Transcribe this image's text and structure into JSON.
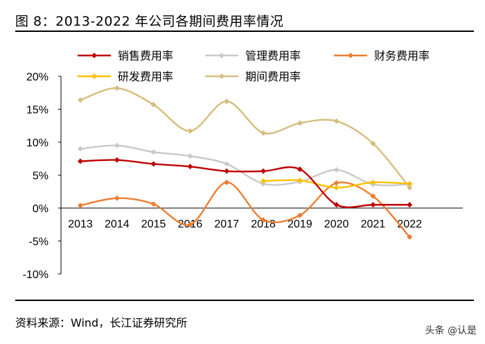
{
  "figure": {
    "title": "图 8：2013-2022 年公司各期间费用率情况",
    "source": "资料来源：Wind，长江证券研究所",
    "watermark": "头条 @认是"
  },
  "chart_data": {
    "type": "line",
    "x": [
      "2013",
      "2014",
      "2015",
      "2016",
      "2017",
      "2018",
      "2019",
      "2020",
      "2021",
      "2022"
    ],
    "ylim": [
      -10,
      20
    ],
    "yticks": [
      20,
      15,
      10,
      5,
      0,
      -5,
      -10
    ],
    "ytick_labels": [
      "20%",
      "15%",
      "10%",
      "5%",
      "0%",
      "-5%",
      "-10%"
    ],
    "grid": false,
    "legend_position": "top",
    "smooth": true,
    "series": [
      {
        "name": "销售费用率",
        "color": "#c00000",
        "values": [
          7.1,
          7.3,
          6.7,
          6.3,
          5.6,
          5.6,
          5.9,
          0.5,
          0.5,
          0.5
        ]
      },
      {
        "name": "管理费用率",
        "color": "#c9c9c9",
        "values": [
          9.0,
          9.5,
          8.5,
          7.9,
          6.7,
          3.7,
          4.0,
          5.8,
          3.6,
          3.6
        ]
      },
      {
        "name": "财务费用率",
        "color": "#ed7d31",
        "values": [
          0.4,
          1.5,
          0.6,
          -2.5,
          3.9,
          -1.8,
          -1.1,
          3.8,
          1.8,
          -4.4
        ]
      },
      {
        "name": "研发费用率",
        "color": "#ffc000",
        "values": [
          null,
          null,
          null,
          null,
          null,
          4.1,
          4.2,
          3.1,
          3.9,
          3.7
        ]
      },
      {
        "name": "期间费用率",
        "color": "#d6bd7e",
        "values": [
          16.4,
          18.2,
          15.7,
          11.7,
          16.2,
          11.4,
          12.9,
          13.2,
          9.8,
          3.1
        ]
      }
    ]
  }
}
